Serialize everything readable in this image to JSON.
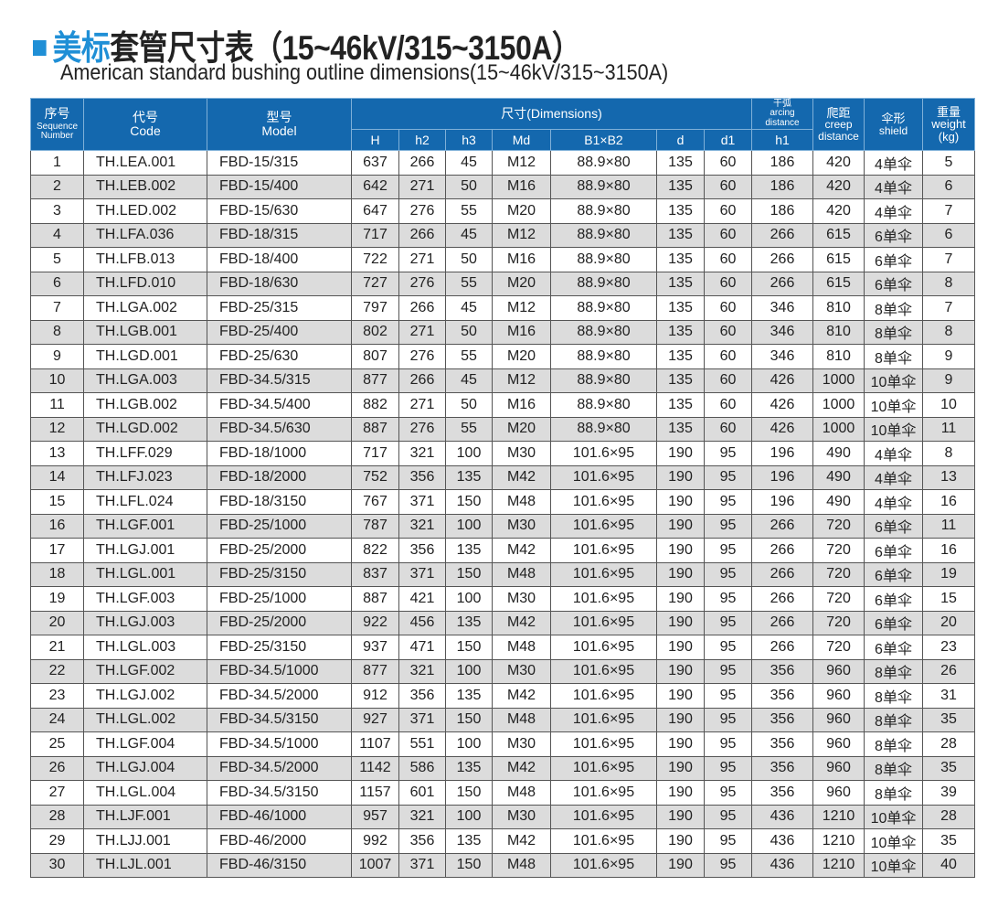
{
  "title": {
    "accent": "美标",
    "rest": "套管尺寸表（15~46kV/315~3150A）",
    "subtitle": "American standard bushing outline dimensions(15~46kV/315~3150A)",
    "accent_color": "#1f8fd6",
    "icon": "square-bullet-icon"
  },
  "header": {
    "seq_cn": "序号",
    "seq_en1": "Sequence",
    "seq_en2": "Number",
    "code_cn": "代号",
    "code_en": "Code",
    "model_cn": "型号",
    "model_en": "Model",
    "dims": "尺寸(Dimensions)",
    "sub": [
      "H",
      "h2",
      "h3",
      "Md",
      "B1×B2",
      "d",
      "d1"
    ],
    "arc_cn": "干弧",
    "arc_en1": "arcing",
    "arc_en2": "distance",
    "arc_sub": "h1",
    "creep_cn": "爬距",
    "creep_en1": "creep",
    "creep_en2": "distance",
    "shield_cn": "伞形",
    "shield_en": "shield",
    "weight_cn": "重量",
    "weight_en": "weight",
    "weight_unit": "(kg)",
    "color": "#1468ae"
  },
  "rows": [
    [
      "1",
      "TH.LEA.001",
      "FBD-15/315",
      "637",
      "266",
      "45",
      "M12",
      "88.9×80",
      "135",
      "60",
      "186",
      "420",
      "4单伞",
      "5"
    ],
    [
      "2",
      "TH.LEB.002",
      "FBD-15/400",
      "642",
      "271",
      "50",
      "M16",
      "88.9×80",
      "135",
      "60",
      "186",
      "420",
      "4单伞",
      "6"
    ],
    [
      "3",
      "TH.LED.002",
      "FBD-15/630",
      "647",
      "276",
      "55",
      "M20",
      "88.9×80",
      "135",
      "60",
      "186",
      "420",
      "4单伞",
      "7"
    ],
    [
      "4",
      "TH.LFA.036",
      "FBD-18/315",
      "717",
      "266",
      "45",
      "M12",
      "88.9×80",
      "135",
      "60",
      "266",
      "615",
      "6单伞",
      "6"
    ],
    [
      "5",
      "TH.LFB.013",
      "FBD-18/400",
      "722",
      "271",
      "50",
      "M16",
      "88.9×80",
      "135",
      "60",
      "266",
      "615",
      "6单伞",
      "7"
    ],
    [
      "6",
      "TH.LFD.010",
      "FBD-18/630",
      "727",
      "276",
      "55",
      "M20",
      "88.9×80",
      "135",
      "60",
      "266",
      "615",
      "6单伞",
      "8"
    ],
    [
      "7",
      "TH.LGA.002",
      "FBD-25/315",
      "797",
      "266",
      "45",
      "M12",
      "88.9×80",
      "135",
      "60",
      "346",
      "810",
      "8单伞",
      "7"
    ],
    [
      "8",
      "TH.LGB.001",
      "FBD-25/400",
      "802",
      "271",
      "50",
      "M16",
      "88.9×80",
      "135",
      "60",
      "346",
      "810",
      "8单伞",
      "8"
    ],
    [
      "9",
      "TH.LGD.001",
      "FBD-25/630",
      "807",
      "276",
      "55",
      "M20",
      "88.9×80",
      "135",
      "60",
      "346",
      "810",
      "8单伞",
      "9"
    ],
    [
      "10",
      "TH.LGA.003",
      "FBD-34.5/315",
      "877",
      "266",
      "45",
      "M12",
      "88.9×80",
      "135",
      "60",
      "426",
      "1000",
      "10单伞",
      "9"
    ],
    [
      "11",
      "TH.LGB.002",
      "FBD-34.5/400",
      "882",
      "271",
      "50",
      "M16",
      "88.9×80",
      "135",
      "60",
      "426",
      "1000",
      "10单伞",
      "10"
    ],
    [
      "12",
      "TH.LGD.002",
      "FBD-34.5/630",
      "887",
      "276",
      "55",
      "M20",
      "88.9×80",
      "135",
      "60",
      "426",
      "1000",
      "10单伞",
      "11"
    ],
    [
      "13",
      "TH.LFF.029",
      "FBD-18/1000",
      "717",
      "321",
      "100",
      "M30",
      "101.6×95",
      "190",
      "95",
      "196",
      "490",
      "4单伞",
      "8"
    ],
    [
      "14",
      "TH.LFJ.023",
      "FBD-18/2000",
      "752",
      "356",
      "135",
      "M42",
      "101.6×95",
      "190",
      "95",
      "196",
      "490",
      "4单伞",
      "13"
    ],
    [
      "15",
      "TH.LFL.024",
      "FBD-18/3150",
      "767",
      "371",
      "150",
      "M48",
      "101.6×95",
      "190",
      "95",
      "196",
      "490",
      "4单伞",
      "16"
    ],
    [
      "16",
      "TH.LGF.001",
      "FBD-25/1000",
      "787",
      "321",
      "100",
      "M30",
      "101.6×95",
      "190",
      "95",
      "266",
      "720",
      "6单伞",
      "11"
    ],
    [
      "17",
      "TH.LGJ.001",
      "FBD-25/2000",
      "822",
      "356",
      "135",
      "M42",
      "101.6×95",
      "190",
      "95",
      "266",
      "720",
      "6单伞",
      "16"
    ],
    [
      "18",
      "TH.LGL.001",
      "FBD-25/3150",
      "837",
      "371",
      "150",
      "M48",
      "101.6×95",
      "190",
      "95",
      "266",
      "720",
      "6单伞",
      "19"
    ],
    [
      "19",
      "TH.LGF.003",
      "FBD-25/1000",
      "887",
      "421",
      "100",
      "M30",
      "101.6×95",
      "190",
      "95",
      "266",
      "720",
      "6单伞",
      "15"
    ],
    [
      "20",
      "TH.LGJ.003",
      "FBD-25/2000",
      "922",
      "456",
      "135",
      "M42",
      "101.6×95",
      "190",
      "95",
      "266",
      "720",
      "6单伞",
      "20"
    ],
    [
      "21",
      "TH.LGL.003",
      "FBD-25/3150",
      "937",
      "471",
      "150",
      "M48",
      "101.6×95",
      "190",
      "95",
      "266",
      "720",
      "6单伞",
      "23"
    ],
    [
      "22",
      "TH.LGF.002",
      "FBD-34.5/1000",
      "877",
      "321",
      "100",
      "M30",
      "101.6×95",
      "190",
      "95",
      "356",
      "960",
      "8单伞",
      "26"
    ],
    [
      "23",
      "TH.LGJ.002",
      "FBD-34.5/2000",
      "912",
      "356",
      "135",
      "M42",
      "101.6×95",
      "190",
      "95",
      "356",
      "960",
      "8单伞",
      "31"
    ],
    [
      "24",
      "TH.LGL.002",
      "FBD-34.5/3150",
      "927",
      "371",
      "150",
      "M48",
      "101.6×95",
      "190",
      "95",
      "356",
      "960",
      "8单伞",
      "35"
    ],
    [
      "25",
      "TH.LGF.004",
      "FBD-34.5/1000",
      "1107",
      "551",
      "100",
      "M30",
      "101.6×95",
      "190",
      "95",
      "356",
      "960",
      "8单伞",
      "28"
    ],
    [
      "26",
      "TH.LGJ.004",
      "FBD-34.5/2000",
      "1142",
      "586",
      "135",
      "M42",
      "101.6×95",
      "190",
      "95",
      "356",
      "960",
      "8单伞",
      "35"
    ],
    [
      "27",
      "TH.LGL.004",
      "FBD-34.5/3150",
      "1157",
      "601",
      "150",
      "M48",
      "101.6×95",
      "190",
      "95",
      "356",
      "960",
      "8单伞",
      "39"
    ],
    [
      "28",
      "TH.LJF.001",
      "FBD-46/1000",
      "957",
      "321",
      "100",
      "M30",
      "101.6×95",
      "190",
      "95",
      "436",
      "1210",
      "10单伞",
      "28"
    ],
    [
      "29",
      "TH.LJJ.001",
      "FBD-46/2000",
      "992",
      "356",
      "135",
      "M42",
      "101.6×95",
      "190",
      "95",
      "436",
      "1210",
      "10单伞",
      "35"
    ],
    [
      "30",
      "TH.LJL.001",
      "FBD-46/3150",
      "1007",
      "371",
      "150",
      "M48",
      "101.6×95",
      "190",
      "95",
      "436",
      "1210",
      "10单伞",
      "40"
    ]
  ]
}
